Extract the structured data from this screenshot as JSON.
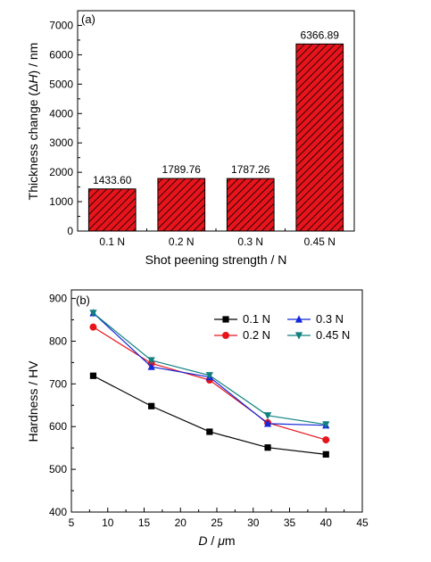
{
  "chart_data": [
    {
      "type": "bar",
      "panel_label": "(a)",
      "ylabel_parts": [
        "Thickness change (",
        "Δ",
        "H",
        ") / nm"
      ],
      "xlabel": "Shot peening strength / N",
      "categories": [
        "0.1 N",
        "0.2 N",
        "0.3 N",
        "0.45 N"
      ],
      "values": [
        1433.6,
        1789.76,
        1787.26,
        6366.89
      ],
      "data_labels": [
        "1433.60",
        "1789.76",
        "1787.26",
        "6366.89"
      ],
      "ylim": [
        0,
        7500
      ],
      "yticks": [
        0,
        1000,
        2000,
        3000,
        4000,
        5000,
        6000,
        7000
      ],
      "bar_color": "#e8141c",
      "bar_hatch": "diagonal",
      "grid": false
    },
    {
      "type": "line",
      "panel_label": "(b)",
      "ylabel": "Hardness / HV",
      "xlabel_parts": [
        "D",
        " / ",
        "μ",
        "m"
      ],
      "xlim": [
        5,
        45
      ],
      "ylim": [
        400,
        920
      ],
      "xticks": [
        5,
        10,
        15,
        20,
        25,
        30,
        35,
        40,
        45
      ],
      "yticks": [
        400,
        500,
        600,
        700,
        800,
        900
      ],
      "x": [
        8,
        16,
        24,
        32,
        40
      ],
      "series": [
        {
          "name": "0.1 N",
          "values": [
            719,
            648,
            588,
            551,
            535
          ],
          "color": "#000000",
          "marker": "square"
        },
        {
          "name": "0.2 N",
          "values": [
            833,
            748,
            709,
            609,
            569
          ],
          "color": "#e8141c",
          "marker": "circle"
        },
        {
          "name": "0.3 N",
          "values": [
            866,
            740,
            716,
            607,
            603
          ],
          "color": "#1428d8",
          "marker": "triangle-up"
        },
        {
          "name": "0.45 N",
          "values": [
            866,
            755,
            720,
            626,
            605
          ],
          "color": "#118080",
          "marker": "triangle-down"
        }
      ],
      "legend_position": "top-right",
      "grid": false
    }
  ]
}
